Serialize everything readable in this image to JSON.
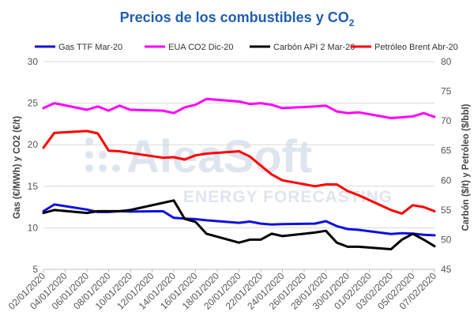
{
  "chart_data": {
    "type": "line",
    "title": "Precios de los combustibles y CO",
    "title_sub": "2",
    "ylabel_left": "Gas (€/MWh) y CO2 (€/t)",
    "ylabel_right": "Carbón ($/t) y Petróleo ($/bbl)",
    "ylim_left": [
      5,
      30
    ],
    "ylim_right": [
      45,
      80
    ],
    "yticks_left": [
      "5",
      "10",
      "15",
      "20",
      "25",
      "30"
    ],
    "yticks_right": [
      "45",
      "50",
      "55",
      "60",
      "65",
      "70",
      "75",
      "80"
    ],
    "grid": true,
    "legend_position": "top",
    "watermark": "AleaSoft ENERGY FORECASTING",
    "x_tick_labels": [
      "02/01/2020",
      "04/01/2020",
      "06/01/2020",
      "08/01/2020",
      "10/01/2020",
      "12/01/2020",
      "14/01/2020",
      "16/01/2020",
      "18/01/2020",
      "20/01/2020",
      "22/01/2020",
      "24/01/2020",
      "26/01/2020",
      "28/01/2020",
      "30/01/2020",
      "01/02/2020",
      "03/02/2020",
      "05/02/2020",
      "07/02/2020"
    ],
    "x": [
      "02/01/2020",
      "03/01/2020",
      "06/01/2020",
      "07/01/2020",
      "08/01/2020",
      "09/01/2020",
      "10/01/2020",
      "13/01/2020",
      "14/01/2020",
      "15/01/2020",
      "16/01/2020",
      "17/01/2020",
      "20/01/2020",
      "21/01/2020",
      "22/01/2020",
      "23/01/2020",
      "24/01/2020",
      "27/01/2020",
      "28/01/2020",
      "29/01/2020",
      "30/01/2020",
      "31/01/2020",
      "03/02/2020",
      "04/02/2020",
      "05/02/2020",
      "06/02/2020",
      "07/02/2020"
    ],
    "series": [
      {
        "name": "Gas TTF Mar-20",
        "axis": "left",
        "color": "#1010e0",
        "values": [
          12.0,
          12.8,
          12.2,
          11.9,
          11.9,
          12.0,
          11.95,
          12.0,
          11.2,
          11.1,
          11.05,
          10.9,
          10.6,
          10.75,
          10.5,
          10.4,
          10.45,
          10.5,
          10.8,
          10.2,
          9.85,
          9.75,
          9.25,
          9.35,
          9.3,
          9.15,
          9.1
        ]
      },
      {
        "name": "EUA CO2 Dic-20",
        "axis": "left",
        "color": "#ff00ff",
        "values": [
          24.4,
          25.0,
          24.2,
          24.6,
          24.1,
          24.7,
          24.2,
          24.1,
          23.8,
          24.5,
          24.8,
          25.5,
          25.2,
          24.9,
          25.0,
          24.8,
          24.4,
          24.6,
          24.7,
          24.0,
          23.8,
          23.9,
          23.2,
          23.3,
          23.4,
          23.8,
          23.35
        ]
      },
      {
        "name": "Carbón API 2 Mar-20",
        "axis": "right",
        "color": "#000000",
        "values": [
          54.5,
          55.0,
          54.5,
          54.8,
          54.8,
          54.8,
          55.0,
          56.2,
          56.6,
          53.5,
          53.0,
          51.0,
          49.5,
          50.0,
          50.0,
          51.0,
          50.6,
          51.2,
          51.5,
          49.5,
          48.8,
          48.8,
          48.4,
          50.0,
          51.0,
          50.0,
          48.9
        ]
      },
      {
        "name": "Petróleo Brent Abr-20",
        "axis": "right",
        "color": "#ff0000",
        "values": [
          65.5,
          68.0,
          68.3,
          67.9,
          65.0,
          64.9,
          64.6,
          63.8,
          63.9,
          63.5,
          64.2,
          64.5,
          64.9,
          64.0,
          62.5,
          61.0,
          60.0,
          59.0,
          59.3,
          59.3,
          58.2,
          57.5,
          55.0,
          54.4,
          55.8,
          55.5,
          54.8
        ]
      }
    ]
  }
}
